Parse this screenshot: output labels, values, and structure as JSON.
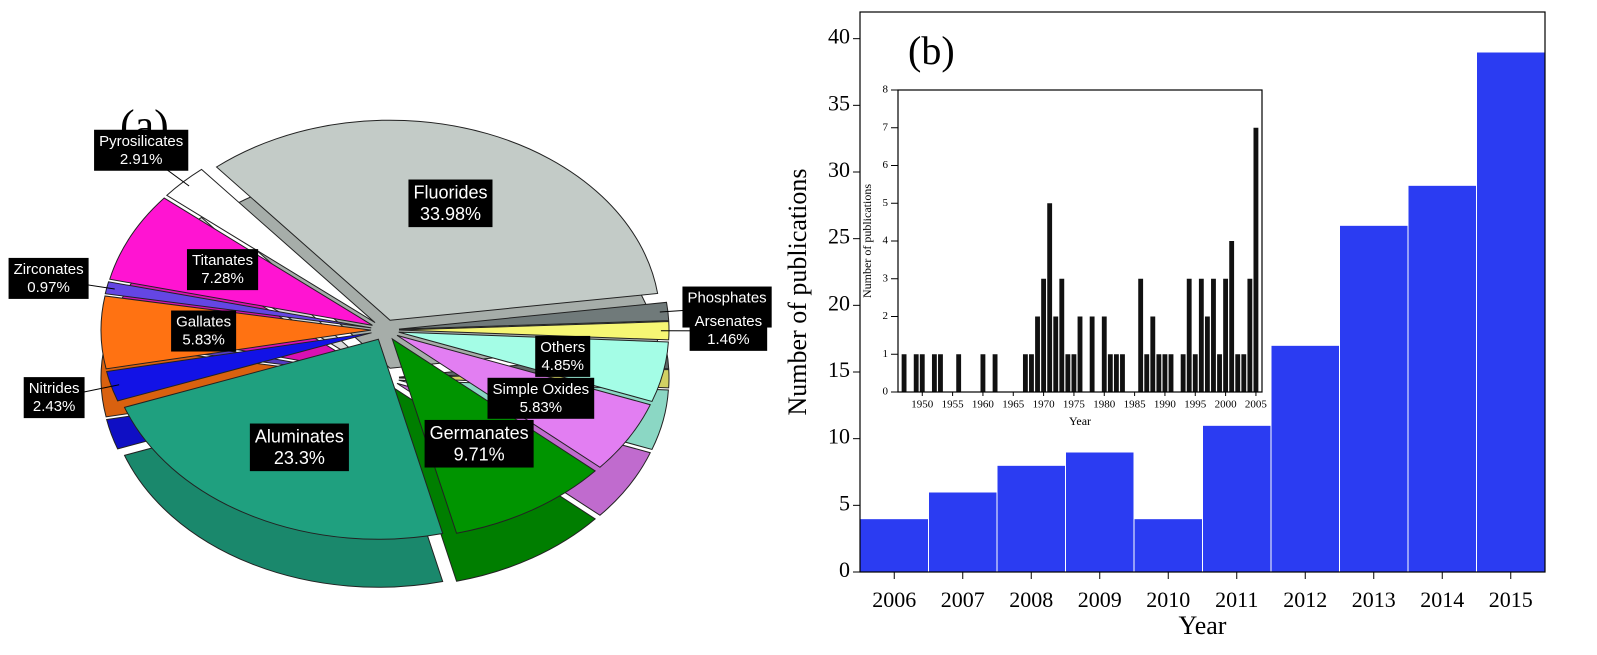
{
  "chart_data": [
    {
      "type": "pie",
      "label": "(a)",
      "categories": [
        "Fluorides",
        "Phosphates",
        "Arsenates",
        "Others",
        "Simple Oxides",
        "Germanates",
        "Aluminates",
        "Nitrides",
        "Gallates",
        "Zirconates",
        "Titanates",
        "Pyrosilicates"
      ],
      "values": [
        33.98,
        1.46,
        1.46,
        4.85,
        5.83,
        9.71,
        23.3,
        2.43,
        5.83,
        0.97,
        7.28,
        2.91
      ],
      "value_labels": [
        "33.98%",
        "1.46%",
        "1.46%",
        "4.85%",
        "5.83%",
        "9.71%",
        "23.3%",
        "2.43%",
        "5.83%",
        "0.97%",
        "7.28%",
        "2.91%"
      ],
      "colors": [
        "#c3cbc7",
        "#707a7a",
        "#f6f674",
        "#a4fde6",
        "#e27ef2",
        "#009400",
        "#1fa07f",
        "#1212e6",
        "#ff7212",
        "#6446e4",
        "#ff14d2",
        "#ffffff"
      ]
    },
    {
      "type": "bar",
      "label": "(b)",
      "xlabel": "Year",
      "ylabel": "Number of publications",
      "categories": [
        "2006",
        "2007",
        "2008",
        "2009",
        "2010",
        "2011",
        "2012",
        "2013",
        "2014",
        "2015"
      ],
      "values": [
        4,
        6,
        8,
        9,
        4,
        11,
        17,
        26,
        29,
        39
      ],
      "color": "#2b3cf2",
      "ylim": [
        0,
        42
      ],
      "yticks": [
        0,
        5,
        10,
        15,
        20,
        25,
        30,
        35,
        40
      ]
    },
    {
      "type": "bar",
      "xlabel": "Year",
      "ylabel": "Number of publications",
      "x": [
        1947,
        1949,
        1950,
        1952,
        1953,
        1956,
        1960,
        1962,
        1967,
        1968,
        1969,
        1970,
        1971,
        1972,
        1973,
        1974,
        1975,
        1976,
        1978,
        1980,
        1981,
        1982,
        1983,
        1986,
        1987,
        1988,
        1989,
        1990,
        1991,
        1993,
        1994,
        1995,
        1996,
        1997,
        1998,
        1999,
        2000,
        2001,
        2002,
        2003,
        2004,
        2005
      ],
      "values": [
        1,
        1,
        1,
        1,
        1,
        1,
        1,
        1,
        1,
        1,
        2,
        3,
        5,
        2,
        3,
        1,
        1,
        2,
        2,
        2,
        1,
        1,
        1,
        3,
        1,
        2,
        1,
        1,
        1,
        1,
        3,
        1,
        3,
        2,
        3,
        1,
        3,
        4,
        1,
        1,
        3,
        7
      ],
      "color": "#111111",
      "xlim": [
        1946,
        2006
      ],
      "xticks": [
        1950,
        1955,
        1960,
        1965,
        1970,
        1975,
        1980,
        1985,
        1990,
        1995,
        2000,
        2005
      ],
      "ylim": [
        0,
        8
      ],
      "yticks": [
        0,
        1,
        2,
        3,
        4,
        5,
        6,
        7,
        8
      ]
    }
  ]
}
